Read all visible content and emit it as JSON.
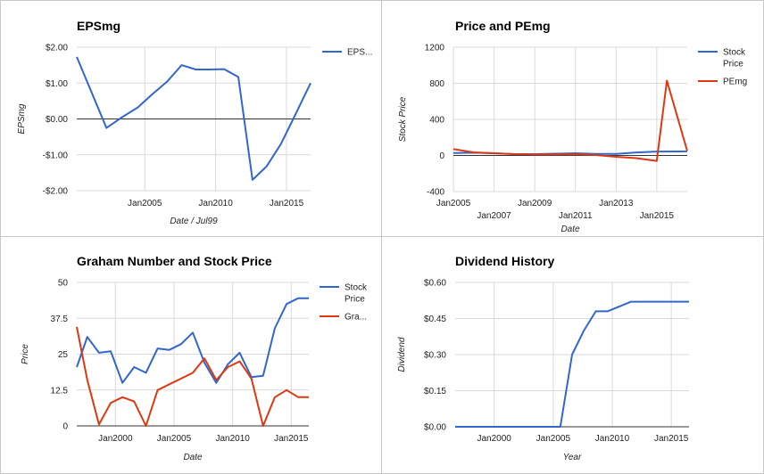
{
  "colors": {
    "blue": "#3366cc",
    "red": "#dc3912"
  },
  "chart_data": [
    {
      "type": "line",
      "title": "EPSmg",
      "xlabel": "Date / Jul99",
      "ylabel": "EPSmg",
      "xlim": [
        2000.2,
        2016.7
      ],
      "ylim": [
        -2,
        2
      ],
      "x_ticks": [
        {
          "v": 2005,
          "label": "Jan2005"
        },
        {
          "v": 2010,
          "label": "Jan2010"
        },
        {
          "v": 2015,
          "label": "Jan2015"
        }
      ],
      "y_ticks": [
        {
          "v": 2,
          "label": "$2.00"
        },
        {
          "v": 1,
          "label": "$1.00"
        },
        {
          "v": 0,
          "label": "$0.00"
        },
        {
          "v": -1,
          "label": "-$1.00"
        },
        {
          "v": -2,
          "label": "-$2.00"
        }
      ],
      "baseline": 0,
      "grid": true,
      "legend": "right",
      "series": [
        {
          "name": "EPS...",
          "color": "blue",
          "x": [
            2000.2,
            2002.3,
            2003.4,
            2004.5,
            2005.5,
            2006.6,
            2007.6,
            2008.6,
            2009.6,
            2010.6,
            2011.6,
            2012.6,
            2013.6,
            2014.6,
            2015.6,
            2016.7
          ],
          "y": [
            1.73,
            -0.25,
            0.05,
            0.32,
            0.68,
            1.05,
            1.5,
            1.38,
            1.38,
            1.39,
            1.17,
            -1.7,
            -1.32,
            -0.7,
            0.1,
            1.0
          ]
        }
      ]
    },
    {
      "type": "line",
      "title": "Price and PEmg",
      "xlabel": "Date",
      "ylabel": "Stock Price",
      "xlim": [
        2005,
        2016.5
      ],
      "ylim": [
        -400,
        1200
      ],
      "x_ticks_top": [
        {
          "v": 2005,
          "label": "Jan2005"
        },
        {
          "v": 2009,
          "label": "Jan2009"
        },
        {
          "v": 2013,
          "label": "Jan2013"
        }
      ],
      "x_ticks_bottom": [
        {
          "v": 2007,
          "label": "Jan2007"
        },
        {
          "v": 2011,
          "label": "Jan2011"
        },
        {
          "v": 2015,
          "label": "Jan2015"
        }
      ],
      "y_ticks": [
        {
          "v": 1200,
          "label": "1200"
        },
        {
          "v": 800,
          "label": "800"
        },
        {
          "v": 400,
          "label": "400"
        },
        {
          "v": 0,
          "label": "0"
        },
        {
          "v": -400,
          "label": "-400"
        }
      ],
      "baseline": 0,
      "grid": true,
      "legend": "right",
      "series": [
        {
          "name": "Stock Price",
          "color": "blue",
          "x": [
            2005,
            2006,
            2007,
            2008,
            2009,
            2010,
            2011,
            2012,
            2013,
            2014,
            2015,
            2016.5
          ],
          "y": [
            27,
            31,
            25,
            15,
            15,
            20,
            25,
            17,
            17,
            34,
            43,
            45
          ]
        },
        {
          "name": "PEmg",
          "color": "red",
          "x": [
            2005,
            2006,
            2007,
            2008,
            2009,
            2010,
            2011,
            2012,
            2013,
            2014,
            2015,
            2015.5,
            2016.5
          ],
          "y": [
            70,
            35,
            25,
            15,
            10,
            10,
            12,
            5,
            -15,
            -30,
            -60,
            830,
            50
          ]
        }
      ]
    },
    {
      "type": "line",
      "title": "Graham Number and Stock Price",
      "xlabel": "Date",
      "ylabel": "Price",
      "xlim": [
        1996.7,
        2016.5
      ],
      "ylim": [
        0,
        50
      ],
      "x_ticks": [
        {
          "v": 2000,
          "label": "Jan2000"
        },
        {
          "v": 2005,
          "label": "Jan2005"
        },
        {
          "v": 2010,
          "label": "Jan2010"
        },
        {
          "v": 2015,
          "label": "Jan2015"
        }
      ],
      "y_ticks": [
        {
          "v": 50,
          "label": "50"
        },
        {
          "v": 37.5,
          "label": "37.5"
        },
        {
          "v": 25,
          "label": "25"
        },
        {
          "v": 12.5,
          "label": "12.5"
        },
        {
          "v": 0,
          "label": "0"
        }
      ],
      "grid": true,
      "legend": "right",
      "series": [
        {
          "name": "Stock Price",
          "color": "blue",
          "x": [
            1996.7,
            1997.6,
            1998.6,
            1999.6,
            2000.6,
            2001.6,
            2002.6,
            2003.6,
            2004.6,
            2005.6,
            2006.6,
            2007.6,
            2008.6,
            2009.6,
            2010.6,
            2011.6,
            2012.6,
            2013.6,
            2014.6,
            2015.6,
            2016.5
          ],
          "y": [
            20.5,
            31,
            25.5,
            26,
            15,
            20.5,
            18.5,
            27,
            26.5,
            28.5,
            32.5,
            22,
            15,
            21.5,
            25.5,
            17,
            17.5,
            34,
            42.5,
            44.5,
            44.5
          ]
        },
        {
          "name": "Gra...",
          "color": "red",
          "x": [
            1996.7,
            1997.6,
            1998.6,
            1999.6,
            2000.6,
            2001.6,
            2002.6,
            2003.6,
            2004.6,
            2005.6,
            2006.6,
            2007.6,
            2008.6,
            2009.6,
            2010.6,
            2011.6,
            2012.6,
            2013.6,
            2014.6,
            2015.6,
            2016.5
          ],
          "y": [
            34.5,
            16,
            0.5,
            8,
            10,
            8.5,
            0,
            12.5,
            14.5,
            16.5,
            18.5,
            23.5,
            16,
            20.5,
            22.5,
            16.5,
            0,
            10,
            12.5,
            10,
            10
          ]
        }
      ]
    },
    {
      "type": "line",
      "title": "Dividend History",
      "xlabel": "Year",
      "ylabel": "Dividend",
      "xlim": [
        1996.7,
        2016.5
      ],
      "ylim": [
        0,
        0.6
      ],
      "x_ticks": [
        {
          "v": 2000,
          "label": "Jan2000"
        },
        {
          "v": 2005,
          "label": "Jan2005"
        },
        {
          "v": 2010,
          "label": "Jan2010"
        },
        {
          "v": 2015,
          "label": "Jan2015"
        }
      ],
      "y_ticks": [
        {
          "v": 0.6,
          "label": "$0.60"
        },
        {
          "v": 0.45,
          "label": "$0.45"
        },
        {
          "v": 0.3,
          "label": "$0.30"
        },
        {
          "v": 0.15,
          "label": "$0.15"
        },
        {
          "v": 0,
          "label": "$0.00"
        }
      ],
      "grid": true,
      "series": [
        {
          "name": "",
          "color": "blue",
          "x": [
            1996.7,
            2005.6,
            2006.6,
            2007.6,
            2008.6,
            2009.6,
            2011.6,
            2016.5
          ],
          "y": [
            0,
            0,
            0.3,
            0.4,
            0.48,
            0.48,
            0.52,
            0.52
          ]
        }
      ]
    }
  ]
}
